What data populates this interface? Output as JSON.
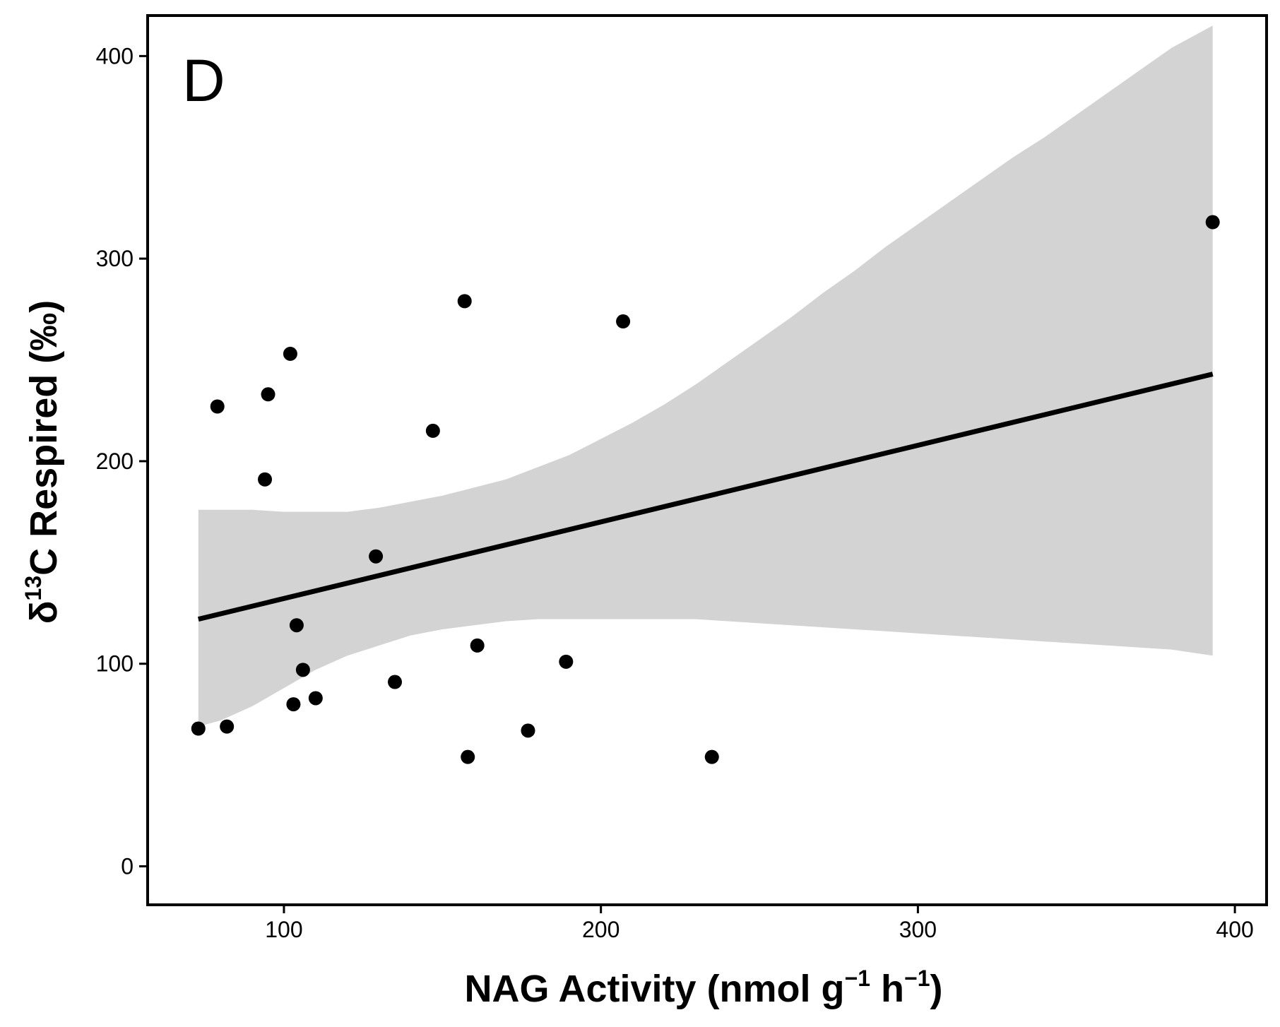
{
  "chart_data": {
    "type": "scatter",
    "panel_label": "D",
    "xlabel": {
      "main": "NAG Activity (nmol g",
      "sup1": "−1",
      "mid": " h",
      "sup2": "−1",
      "end": ")"
    },
    "ylabel": {
      "pre": "δ",
      "sup": "13",
      "post": "C Respired (‰)"
    },
    "xlim": [
      57,
      410
    ],
    "ylim": [
      -19,
      420
    ],
    "xticks": [
      100,
      200,
      300,
      400
    ],
    "yticks": [
      0,
      100,
      200,
      300,
      400
    ],
    "points": [
      {
        "x": 73,
        "y": 68
      },
      {
        "x": 79,
        "y": 227
      },
      {
        "x": 82,
        "y": 69
      },
      {
        "x": 94,
        "y": 191
      },
      {
        "x": 95,
        "y": 233
      },
      {
        "x": 102,
        "y": 253
      },
      {
        "x": 103,
        "y": 80
      },
      {
        "x": 104,
        "y": 119
      },
      {
        "x": 106,
        "y": 97
      },
      {
        "x": 110,
        "y": 83
      },
      {
        "x": 129,
        "y": 153
      },
      {
        "x": 135,
        "y": 91
      },
      {
        "x": 147,
        "y": 215
      },
      {
        "x": 157,
        "y": 279
      },
      {
        "x": 158,
        "y": 54
      },
      {
        "x": 161,
        "y": 109
      },
      {
        "x": 177,
        "y": 67
      },
      {
        "x": 189,
        "y": 101
      },
      {
        "x": 207,
        "y": 269
      },
      {
        "x": 235,
        "y": 54
      },
      {
        "x": 393,
        "y": 318
      }
    ],
    "fit_line": {
      "x": [
        73,
        393
      ],
      "y": [
        122,
        243
      ]
    },
    "confidence_band": {
      "x": [
        73,
        80,
        90,
        100,
        110,
        120,
        130,
        140,
        150,
        160,
        170,
        180,
        190,
        200,
        210,
        220,
        230,
        240,
        250,
        260,
        270,
        280,
        290,
        300,
        310,
        320,
        330,
        340,
        350,
        360,
        370,
        380,
        393
      ],
      "upper": [
        176,
        176,
        176,
        175,
        175,
        175,
        177,
        180,
        183,
        187,
        191,
        197,
        203,
        211,
        219,
        228,
        238,
        249,
        260,
        271,
        283,
        294,
        306,
        317,
        328,
        339,
        350,
        360,
        371,
        382,
        393,
        404,
        415
      ],
      "lower": [
        69,
        72,
        79,
        88,
        97,
        104,
        109,
        114,
        117,
        119,
        121,
        122,
        122,
        122,
        122,
        122,
        122,
        121,
        120,
        119,
        118,
        117,
        116,
        115,
        114,
        113,
        112,
        111,
        110,
        109,
        108,
        107,
        104
      ]
    },
    "colors": {
      "points": "#000000",
      "line": "#000000",
      "band": "#d3d3d3",
      "frame": "#000000"
    },
    "grid": false,
    "legend": "none"
  }
}
